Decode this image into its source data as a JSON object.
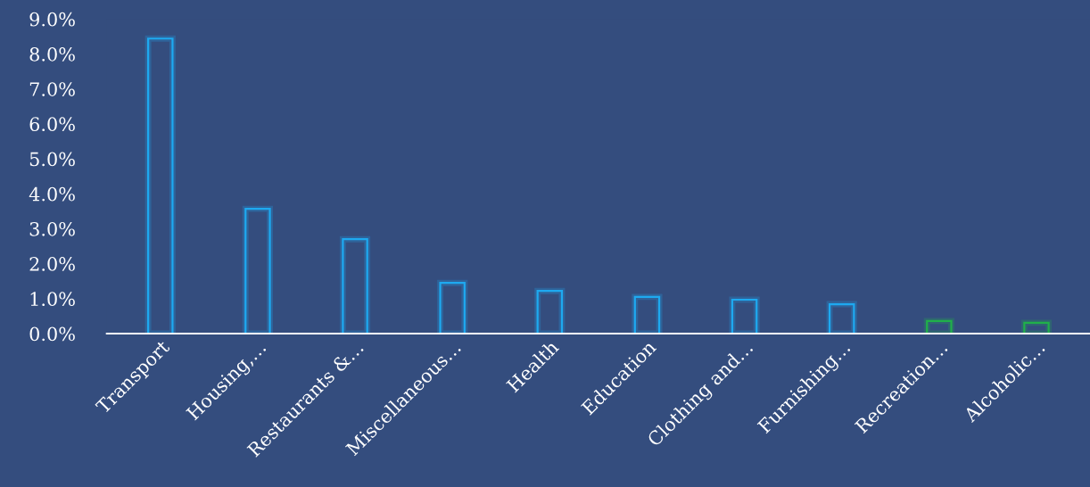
{
  "chart_data": {
    "type": "bar",
    "categories": [
      "Transport",
      "Housing,…",
      "Restaurants &…",
      "Miscellaneous…",
      "Health",
      "Education",
      "Clothing and…",
      "Furnishing…",
      "Recreation…",
      "Alcoholic…"
    ],
    "values": [
      8.44,
      3.57,
      2.7,
      1.45,
      1.22,
      1.05,
      0.97,
      0.84,
      0.36,
      0.31
    ],
    "colors": [
      "#1ea9f0",
      "#1ea9f0",
      "#1ea9f0",
      "#1ea9f0",
      "#1ea9f0",
      "#1ea9f0",
      "#1ea9f0",
      "#1ea9f0",
      "#20b04a",
      "#20b04a"
    ],
    "ylim": [
      0,
      9
    ],
    "yticks": [
      {
        "value": 0,
        "label": "0.0%"
      },
      {
        "value": 1,
        "label": "1.0%"
      },
      {
        "value": 2,
        "label": "2.0%"
      },
      {
        "value": 3,
        "label": "3.0%"
      },
      {
        "value": 4,
        "label": "4.0%"
      },
      {
        "value": 5,
        "label": "5.0%"
      },
      {
        "value": 6,
        "label": "6.0%"
      },
      {
        "value": 7,
        "label": "7.0%"
      },
      {
        "value": 8,
        "label": "8.0%"
      },
      {
        "value": 9,
        "label": "9.0%"
      }
    ],
    "grid": false
  }
}
